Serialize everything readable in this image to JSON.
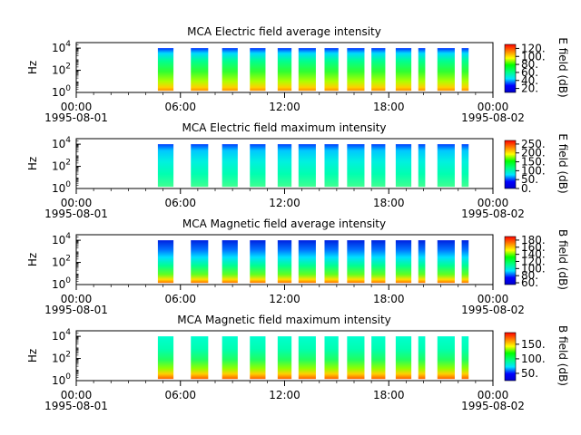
{
  "chart_data": [
    {
      "type": "heatmap",
      "title": "MCA  Electric field average intensity",
      "ylabel": "Hz",
      "y_scale": "log",
      "y_ticks": [
        {
          "base": "10",
          "exp": "0"
        },
        {
          "base": "10",
          "exp": "2"
        },
        {
          "base": "10",
          "exp": "4"
        }
      ],
      "x_ticks": [
        {
          "time": "00:00",
          "date": "1995-08-01"
        },
        {
          "time": "06:00",
          "date": ""
        },
        {
          "time": "12:00",
          "date": ""
        },
        {
          "time": "18:00",
          "date": ""
        },
        {
          "time": "00:00",
          "date": "1995-08-02"
        }
      ],
      "x_range_hours": [
        0,
        24
      ],
      "colorbar_label": "E field (dB)",
      "colorbar_ticks": [
        "20.",
        "40.",
        "60.",
        "80.",
        "100.",
        "120."
      ],
      "colorbar_range": [
        10,
        130
      ],
      "colormap": [
        "#0000cc",
        "#0000ff",
        "#00e5ff",
        "#00ff80",
        "#00ff00",
        "#ffff00",
        "#ff8000",
        "#ff0000"
      ],
      "segments_hours": [
        [
          4.7,
          5.6
        ],
        [
          6.6,
          7.6
        ],
        [
          8.4,
          9.3
        ],
        [
          10.0,
          10.9
        ],
        [
          11.6,
          12.4
        ],
        [
          12.8,
          13.8
        ],
        [
          14.3,
          15.1
        ],
        [
          15.6,
          16.6
        ],
        [
          17.0,
          17.8
        ],
        [
          18.4,
          19.3
        ],
        [
          19.7,
          20.1
        ],
        [
          20.8,
          21.8
        ],
        [
          22.2,
          22.6
        ]
      ],
      "profile": "avgE"
    },
    {
      "type": "heatmap",
      "title": "MCA  Electric field maximum intensity",
      "ylabel": "Hz",
      "y_scale": "log",
      "y_ticks": [
        {
          "base": "10",
          "exp": "0"
        },
        {
          "base": "10",
          "exp": "2"
        },
        {
          "base": "10",
          "exp": "4"
        }
      ],
      "x_ticks": [
        {
          "time": "00:00",
          "date": "1995-08-01"
        },
        {
          "time": "06:00",
          "date": ""
        },
        {
          "time": "12:00",
          "date": ""
        },
        {
          "time": "18:00",
          "date": ""
        },
        {
          "time": "00:00",
          "date": "1995-08-02"
        }
      ],
      "x_range_hours": [
        0,
        24
      ],
      "colorbar_label": "E field (dB)",
      "colorbar_ticks": [
        "0.",
        "50.",
        "100.",
        "150.",
        "200.",
        "250."
      ],
      "colorbar_range": [
        0,
        270
      ],
      "colormap": [
        "#0000cc",
        "#0000ff",
        "#00e5ff",
        "#00ff80",
        "#00ff00",
        "#ffff00",
        "#ff8000",
        "#ff0000"
      ],
      "segments_hours": [
        [
          4.7,
          5.6
        ],
        [
          6.6,
          7.6
        ],
        [
          8.4,
          9.3
        ],
        [
          10.0,
          10.9
        ],
        [
          11.6,
          12.4
        ],
        [
          12.8,
          13.8
        ],
        [
          14.3,
          15.1
        ],
        [
          15.6,
          16.6
        ],
        [
          17.0,
          17.8
        ],
        [
          18.4,
          19.3
        ],
        [
          19.7,
          20.1
        ],
        [
          20.8,
          21.8
        ],
        [
          22.2,
          22.6
        ]
      ],
      "profile": "maxE"
    },
    {
      "type": "heatmap",
      "title": "MCA  Magnetic field average intensity",
      "ylabel": "Hz",
      "y_scale": "log",
      "y_ticks": [
        {
          "base": "10",
          "exp": "0"
        },
        {
          "base": "10",
          "exp": "2"
        },
        {
          "base": "10",
          "exp": "4"
        }
      ],
      "x_ticks": [
        {
          "time": "00:00",
          "date": "1995-08-01"
        },
        {
          "time": "06:00",
          "date": ""
        },
        {
          "time": "12:00",
          "date": ""
        },
        {
          "time": "18:00",
          "date": ""
        },
        {
          "time": "00:00",
          "date": "1995-08-02"
        }
      ],
      "x_range_hours": [
        0,
        24
      ],
      "colorbar_label": "B field (dB)",
      "colorbar_ticks": [
        "60.",
        "80.",
        "100.",
        "120.",
        "140.",
        "160.",
        "180."
      ],
      "colorbar_range": [
        55,
        190
      ],
      "colormap": [
        "#0000cc",
        "#0000ff",
        "#00e5ff",
        "#00ff80",
        "#00ff00",
        "#ffff00",
        "#ff8000",
        "#ff0000"
      ],
      "segments_hours": [
        [
          4.7,
          5.6
        ],
        [
          6.6,
          7.6
        ],
        [
          8.4,
          9.3
        ],
        [
          10.0,
          10.9
        ],
        [
          11.6,
          12.4
        ],
        [
          12.8,
          13.8
        ],
        [
          14.3,
          15.1
        ],
        [
          15.6,
          16.6
        ],
        [
          17.0,
          17.8
        ],
        [
          18.4,
          19.3
        ],
        [
          19.7,
          20.1
        ],
        [
          20.8,
          21.8
        ],
        [
          22.2,
          22.6
        ]
      ],
      "profile": "avgB"
    },
    {
      "type": "heatmap",
      "title": "MCA  Magnetic field maximum intensity",
      "ylabel": "Hz",
      "y_scale": "log",
      "y_ticks": [
        {
          "base": "10",
          "exp": "0"
        },
        {
          "base": "10",
          "exp": "2"
        },
        {
          "base": "10",
          "exp": "4"
        }
      ],
      "x_ticks": [
        {
          "time": "00:00",
          "date": "1995-08-01"
        },
        {
          "time": "06:00",
          "date": ""
        },
        {
          "time": "12:00",
          "date": ""
        },
        {
          "time": "18:00",
          "date": ""
        },
        {
          "time": "00:00",
          "date": "1995-08-02"
        }
      ],
      "x_range_hours": [
        0,
        24
      ],
      "colorbar_label": "B field (dB)",
      "colorbar_ticks": [
        "50.",
        "100.",
        "150."
      ],
      "colorbar_range": [
        25,
        190
      ],
      "colormap": [
        "#0000cc",
        "#0000ff",
        "#00e5ff",
        "#00ff80",
        "#00ff00",
        "#ffff00",
        "#ff8000",
        "#ff0000"
      ],
      "segments_hours": [
        [
          4.7,
          5.6
        ],
        [
          6.6,
          7.6
        ],
        [
          8.4,
          9.3
        ],
        [
          10.0,
          10.9
        ],
        [
          11.6,
          12.4
        ],
        [
          12.8,
          13.8
        ],
        [
          14.3,
          15.1
        ],
        [
          15.6,
          16.6
        ],
        [
          17.0,
          17.8
        ],
        [
          18.4,
          19.3
        ],
        [
          19.7,
          20.1
        ],
        [
          20.8,
          21.8
        ],
        [
          22.2,
          22.6
        ]
      ],
      "profile": "maxB"
    }
  ]
}
